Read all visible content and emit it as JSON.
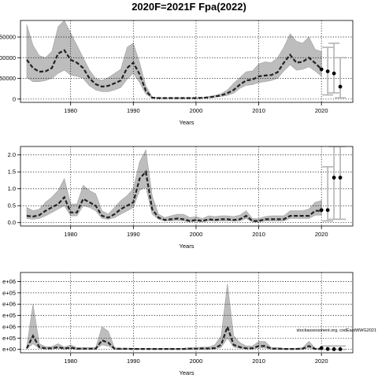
{
  "page": {
    "title": "2020F=2021F Fpa(2022)"
  },
  "chart_data": [
    {
      "type": "line",
      "xlabel": "Years",
      "ylabel": "",
      "xlim": [
        1972,
        2025
      ],
      "ylim": [
        -8000,
        190000
      ],
      "x_ticks": [
        1980,
        1990,
        2000,
        2010,
        2020
      ],
      "x_tick_labels": [
        "1980",
        "1990",
        "2000",
        "2010",
        "2020"
      ],
      "y_ticks": [
        0,
        50000,
        100000,
        150000
      ],
      "y_tick_labels": [
        "0",
        "50000",
        "100000",
        "150000"
      ],
      "grid": true,
      "series": [
        {
          "x": [
            1973,
            1974,
            1975,
            1976,
            1977,
            1978,
            1979,
            1980,
            1981,
            1982,
            1983,
            1984,
            1985,
            1986,
            1987,
            1988,
            1989,
            1990,
            1991,
            1992,
            1993,
            1994,
            1995,
            1996,
            1997,
            1998,
            1999,
            2000,
            2001,
            2002,
            2003,
            2004,
            2005,
            2006,
            2007,
            2008,
            2009,
            2010,
            2011,
            2012,
            2013,
            2014,
            2015,
            2016,
            2017,
            2018,
            2019,
            2020
          ],
          "y": [
            95000,
            75000,
            66000,
            67000,
            75000,
            110000,
            118000,
            95000,
            88000,
            75000,
            50000,
            36000,
            30000,
            32000,
            38000,
            45000,
            75000,
            88000,
            60000,
            20000,
            3500,
            2500,
            2500,
            2500,
            2500,
            2500,
            2500,
            2500,
            3000,
            4000,
            6000,
            9000,
            14000,
            22000,
            35000,
            45000,
            47000,
            55000,
            57000,
            58000,
            65000,
            88000,
            107000,
            88000,
            90000,
            100000,
            87000,
            72000
          ],
          "lower": [
            52000,
            42000,
            42000,
            45000,
            50000,
            62000,
            70000,
            58000,
            55000,
            50000,
            32000,
            22000,
            18000,
            18000,
            22000,
            28000,
            48000,
            62000,
            40000,
            12000,
            2500,
            2000,
            2000,
            2000,
            2000,
            2000,
            2000,
            2000,
            2200,
            3000,
            4500,
            6500,
            9000,
            14000,
            26000,
            33000,
            35000,
            40000,
            42000,
            45000,
            50000,
            68000,
            83000,
            70000,
            72000,
            78000,
            68000,
            55000
          ],
          "upper": [
            180000,
            130000,
            105000,
            100000,
            115000,
            175000,
            190000,
            160000,
            130000,
            100000,
            70000,
            50000,
            45000,
            52000,
            62000,
            72000,
            125000,
            135000,
            88000,
            32000,
            5000,
            3500,
            3500,
            3500,
            3500,
            3500,
            3500,
            3500,
            4000,
            6000,
            9000,
            13000,
            22000,
            38000,
            52000,
            66000,
            68000,
            85000,
            90000,
            88000,
            100000,
            125000,
            158000,
            140000,
            135000,
            150000,
            120000,
            115000
          ]
        }
      ],
      "points": {
        "x": [
          2020,
          2021,
          2022,
          2023
        ],
        "y": [
          72000,
          67000,
          62000,
          30000
        ]
      },
      "error_bars": [
        {
          "x": 2021,
          "low": 10000,
          "high": 125000
        },
        {
          "x": 2022,
          "low": 15000,
          "high": 135000
        },
        {
          "x": 2023,
          "low": 3000,
          "high": 100000
        }
      ]
    },
    {
      "type": "line",
      "xlabel": "Years",
      "ylabel": "",
      "xlim": [
        1972,
        2025
      ],
      "ylim": [
        -0.1,
        2.25
      ],
      "x_ticks": [
        1980,
        1990,
        2000,
        2010,
        2020
      ],
      "x_tick_labels": [
        "1980",
        "1990",
        "2000",
        "2010",
        "2020"
      ],
      "y_ticks": [
        0,
        0.5,
        1.0,
        1.5,
        2.0
      ],
      "y_tick_labels": [
        "0.0",
        "0.5",
        "1.0",
        "1.5",
        "2.0"
      ],
      "grid": true,
      "series": [
        {
          "x": [
            1973,
            1974,
            1975,
            1976,
            1977,
            1978,
            1979,
            1980,
            1981,
            1982,
            1983,
            1984,
            1985,
            1986,
            1987,
            1988,
            1989,
            1990,
            1991,
            1992,
            1993,
            1994,
            1995,
            1996,
            1997,
            1998,
            1999,
            2000,
            2001,
            2002,
            2003,
            2004,
            2005,
            2006,
            2007,
            2008,
            2009,
            2010,
            2011,
            2012,
            2013,
            2014,
            2015,
            2016,
            2017,
            2018,
            2019,
            2020
          ],
          "y": [
            0.2,
            0.18,
            0.22,
            0.35,
            0.45,
            0.55,
            0.75,
            0.3,
            0.3,
            0.7,
            0.6,
            0.5,
            0.2,
            0.15,
            0.25,
            0.4,
            0.5,
            0.6,
            1.3,
            1.5,
            0.4,
            0.15,
            0.08,
            0.1,
            0.12,
            0.1,
            0.05,
            0.08,
            0.05,
            0.1,
            0.08,
            0.1,
            0.1,
            0.08,
            0.1,
            0.2,
            0.05,
            0.05,
            0.1,
            0.1,
            0.1,
            0.1,
            0.2,
            0.2,
            0.2,
            0.2,
            0.35,
            0.35
          ],
          "lower": [
            0.12,
            0.1,
            0.12,
            0.2,
            0.3,
            0.4,
            0.5,
            0.2,
            0.2,
            0.5,
            0.45,
            0.35,
            0.12,
            0.1,
            0.15,
            0.25,
            0.35,
            0.45,
            0.95,
            1.05,
            0.25,
            0.1,
            0.05,
            0.05,
            0.06,
            0.05,
            0.02,
            0.04,
            0.02,
            0.05,
            0.04,
            0.05,
            0.05,
            0.04,
            0.05,
            0.12,
            0.02,
            0.02,
            0.05,
            0.05,
            0.05,
            0.05,
            0.12,
            0.12,
            0.12,
            0.12,
            0.22,
            0.22
          ],
          "upper": [
            0.45,
            0.35,
            0.4,
            0.6,
            0.75,
            0.95,
            1.3,
            0.55,
            0.55,
            1.1,
            0.95,
            0.85,
            0.35,
            0.25,
            0.45,
            0.65,
            0.8,
            1.0,
            1.8,
            2.15,
            0.8,
            0.25,
            0.15,
            0.2,
            0.25,
            0.25,
            0.15,
            0.18,
            0.12,
            0.2,
            0.18,
            0.2,
            0.2,
            0.18,
            0.22,
            0.35,
            0.12,
            0.12,
            0.18,
            0.2,
            0.2,
            0.2,
            0.35,
            0.35,
            0.35,
            0.4,
            0.6,
            0.65
          ]
        }
      ],
      "points": {
        "x": [
          2020,
          2021,
          2022,
          2023
        ],
        "y": [
          0.37,
          0.37,
          1.33,
          1.33
        ]
      },
      "error_bars": [
        {
          "x": 2021,
          "low": 0.05,
          "high": 1.65
        },
        {
          "x": 2022,
          "low": 0.1,
          "high": 2.25
        },
        {
          "x": 2023,
          "low": 0.1,
          "high": 2.25
        }
      ]
    },
    {
      "type": "line",
      "xlabel": "Years",
      "ylabel": "",
      "xlim": [
        1972,
        2025
      ],
      "ylim": [
        -150000,
        3400000
      ],
      "x_ticks": [
        1980,
        1990,
        2000,
        2010,
        2020
      ],
      "x_tick_labels": [
        "1980",
        "1990",
        "2000",
        "2010",
        "2020"
      ],
      "y_ticks": [
        0,
        500000,
        1000000,
        1500000,
        2000000,
        2500000,
        3000000
      ],
      "y_tick_labels": [
        "e+00",
        "e+05",
        "e+06",
        "e+05",
        "e+06",
        "e+05",
        "e+06"
      ],
      "grid": true,
      "annotation": "stockassessment.org, codEastWWG2021",
      "series": [
        {
          "x": [
            1973,
            1974,
            1975,
            1976,
            1977,
            1978,
            1979,
            1980,
            1981,
            1982,
            1983,
            1984,
            1985,
            1986,
            1987,
            1988,
            1989,
            1990,
            1991,
            1992,
            1993,
            1994,
            1995,
            1996,
            1997,
            1998,
            1999,
            2000,
            2001,
            2002,
            2003,
            2004,
            2005,
            2006,
            2007,
            2008,
            2009,
            2010,
            2011,
            2012,
            2013,
            2014,
            2015,
            2016,
            2017,
            2018,
            2019,
            2020
          ],
          "y": [
            50000,
            600000,
            100000,
            50000,
            50000,
            100000,
            40000,
            80000,
            30000,
            30000,
            30000,
            30000,
            400000,
            300000,
            30000,
            25000,
            25000,
            20000,
            20000,
            20000,
            20000,
            20000,
            20000,
            20000,
            20000,
            20000,
            30000,
            30000,
            40000,
            40000,
            60000,
            200000,
            1000000,
            200000,
            100000,
            50000,
            50000,
            150000,
            150000,
            30000,
            30000,
            20000,
            20000,
            20000,
            30000,
            150000,
            20000,
            20000
          ],
          "lower": [
            20000,
            250000,
            40000,
            20000,
            20000,
            40000,
            15000,
            30000,
            10000,
            10000,
            10000,
            10000,
            200000,
            150000,
            10000,
            10000,
            10000,
            8000,
            8000,
            8000,
            8000,
            8000,
            8000,
            8000,
            8000,
            8000,
            12000,
            12000,
            15000,
            15000,
            25000,
            80000,
            500000,
            100000,
            50000,
            20000,
            20000,
            60000,
            60000,
            12000,
            12000,
            8000,
            8000,
            8000,
            12000,
            60000,
            8000,
            8000
          ],
          "upper": [
            150000,
            2000000,
            250000,
            120000,
            120000,
            250000,
            100000,
            200000,
            80000,
            80000,
            80000,
            80000,
            1000000,
            800000,
            80000,
            60000,
            60000,
            50000,
            50000,
            50000,
            50000,
            50000,
            50000,
            50000,
            50000,
            50000,
            80000,
            80000,
            100000,
            100000,
            200000,
            600000,
            2900000,
            600000,
            300000,
            150000,
            150000,
            350000,
            350000,
            80000,
            80000,
            50000,
            50000,
            50000,
            80000,
            350000,
            60000,
            60000
          ]
        }
      ],
      "points": {
        "x": [
          2020,
          2021,
          2022,
          2023
        ],
        "y": [
          60000,
          20000,
          10000,
          10000
        ]
      },
      "error_bars": [
        {
          "x": 2021,
          "low": 0,
          "high": 150000
        },
        {
          "x": 2022,
          "low": 0,
          "high": 150000
        },
        {
          "x": 2023,
          "low": 0,
          "high": 150000
        }
      ]
    }
  ],
  "colors": {
    "band": "#bdbdbd",
    "band_edge": "#a0a0a0",
    "line": "#222222",
    "errorbar": "#b3b3b3",
    "grid": "#000000",
    "axis": "#000000"
  }
}
